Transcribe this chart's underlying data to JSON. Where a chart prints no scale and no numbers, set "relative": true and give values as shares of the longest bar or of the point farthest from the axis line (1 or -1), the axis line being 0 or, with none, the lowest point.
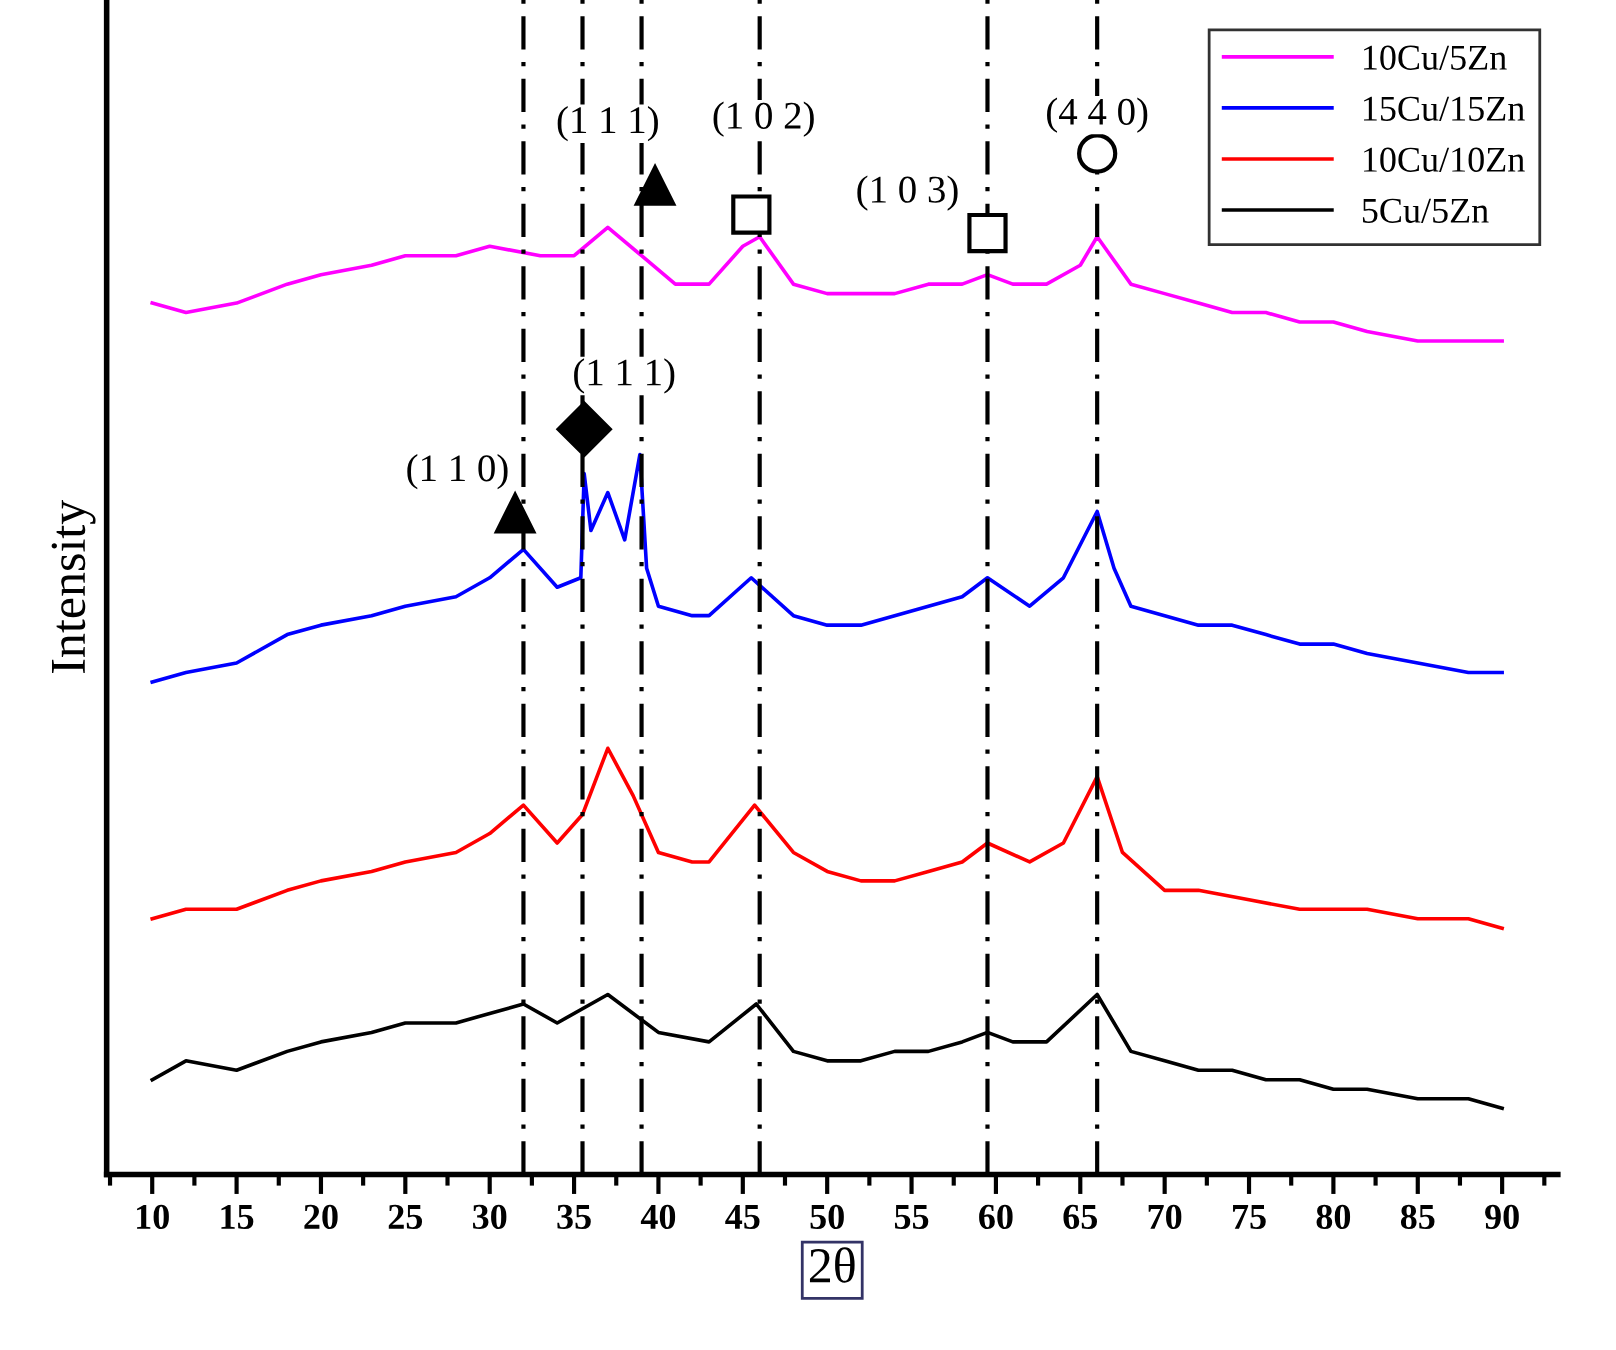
{
  "chart_data": {
    "type": "line",
    "xlabel": "2θ",
    "ylabel": "Intensity",
    "relative": true,
    "xlim": [
      7.3,
      93.3
    ],
    "xticks": [
      {
        "value": 7.5,
        "label": null
      },
      10,
      {
        "value": 12.5,
        "label": null
      },
      15,
      {
        "value": 17.5,
        "label": null
      },
      20,
      {
        "value": 22.5,
        "label": null
      },
      25,
      {
        "value": 27.5,
        "label": null
      },
      30,
      {
        "value": 32.5,
        "label": null
      },
      35,
      {
        "value": 37.5,
        "label": null
      },
      40,
      {
        "value": 42.5,
        "label": null
      },
      45,
      {
        "value": 47.5,
        "label": null
      },
      50,
      {
        "value": 52.5,
        "label": null
      },
      55,
      {
        "value": 57.5,
        "label": null
      },
      60,
      {
        "value": 62.5,
        "label": null
      },
      65,
      {
        "value": 67.5,
        "label": null
      },
      70,
      {
        "value": 72.5,
        "label": null
      },
      75,
      {
        "value": 77.5,
        "label": null
      },
      80,
      {
        "value": 82.5,
        "label": null
      },
      85,
      {
        "value": 87.5,
        "label": null
      },
      90,
      {
        "value": 92.5,
        "label": null
      }
    ],
    "legend": "top right",
    "grid": false,
    "series": [
      {
        "name": "10Cu/5Zn",
        "color": "#ff00ff",
        "x": [
          10,
          12,
          15,
          18,
          20,
          23,
          25,
          28,
          30,
          33,
          35,
          37,
          39,
          41,
          43,
          45,
          46,
          48,
          50,
          52,
          54,
          56,
          58,
          59.5,
          61,
          63,
          65,
          66,
          68,
          70,
          72,
          74,
          76,
          78,
          80,
          82,
          85,
          88,
          90
        ],
        "values": [
          0.92,
          0.91,
          0.92,
          0.94,
          0.95,
          0.96,
          0.97,
          0.97,
          0.98,
          0.97,
          0.97,
          1.0,
          0.97,
          0.94,
          0.94,
          0.98,
          0.99,
          0.94,
          0.93,
          0.93,
          0.93,
          0.94,
          0.94,
          0.95,
          0.94,
          0.94,
          0.96,
          0.99,
          0.94,
          0.93,
          0.92,
          0.91,
          0.91,
          0.9,
          0.9,
          0.89,
          0.88,
          0.88,
          0.88
        ]
      },
      {
        "name": "15Cu/15Zn",
        "color": "#0000ff",
        "x": [
          10,
          12,
          15,
          18,
          20,
          23,
          25,
          28,
          30,
          32,
          34,
          35.4,
          35.6,
          36,
          37,
          38,
          38.9,
          39.3,
          40,
          42,
          43,
          45.5,
          48,
          50,
          52,
          54,
          56,
          58,
          59.5,
          62,
          64,
          66,
          67,
          68,
          70,
          72,
          74,
          76,
          78,
          80,
          82,
          85,
          88,
          90
        ],
        "values": [
          0.52,
          0.53,
          0.54,
          0.57,
          0.58,
          0.59,
          0.6,
          0.61,
          0.63,
          0.66,
          0.62,
          0.63,
          0.74,
          0.68,
          0.72,
          0.67,
          0.76,
          0.64,
          0.6,
          0.59,
          0.59,
          0.63,
          0.59,
          0.58,
          0.58,
          0.59,
          0.6,
          0.61,
          0.63,
          0.6,
          0.63,
          0.7,
          0.64,
          0.6,
          0.59,
          0.58,
          0.58,
          0.57,
          0.56,
          0.56,
          0.55,
          0.54,
          0.53,
          0.53
        ]
      },
      {
        "name": "10Cu/10Zn",
        "color": "#ff0000",
        "x": [
          10,
          12,
          15,
          18,
          20,
          23,
          25,
          28,
          30,
          32,
          34,
          35.5,
          37,
          38.5,
          40,
          42,
          43,
          45.7,
          48,
          50,
          52,
          54,
          56,
          58,
          59.5,
          62,
          64,
          66,
          67.5,
          70,
          72,
          75,
          78,
          80,
          82,
          85,
          88,
          90
        ],
        "values": [
          0.27,
          0.28,
          0.28,
          0.3,
          0.31,
          0.32,
          0.33,
          0.34,
          0.36,
          0.39,
          0.35,
          0.38,
          0.45,
          0.4,
          0.34,
          0.33,
          0.33,
          0.39,
          0.34,
          0.32,
          0.31,
          0.31,
          0.32,
          0.33,
          0.35,
          0.33,
          0.35,
          0.42,
          0.34,
          0.3,
          0.3,
          0.29,
          0.28,
          0.28,
          0.28,
          0.27,
          0.27,
          0.26
        ]
      },
      {
        "name": "5Cu/5Zn",
        "color": "#000000",
        "x": [
          10,
          12,
          15,
          18,
          20,
          23,
          25,
          28,
          30,
          32,
          34,
          37,
          40,
          43,
          45.8,
          48,
          50,
          52,
          54,
          56,
          58,
          59.5,
          61,
          63,
          66,
          68,
          70,
          72,
          74,
          76,
          78,
          80,
          82,
          85,
          88,
          90
        ],
        "values": [
          0.1,
          0.12,
          0.11,
          0.13,
          0.14,
          0.15,
          0.16,
          0.16,
          0.17,
          0.18,
          0.16,
          0.19,
          0.15,
          0.14,
          0.18,
          0.13,
          0.12,
          0.12,
          0.13,
          0.13,
          0.14,
          0.15,
          0.14,
          0.14,
          0.19,
          0.13,
          0.12,
          0.11,
          0.11,
          0.1,
          0.1,
          0.09,
          0.09,
          0.08,
          0.08,
          0.07
        ]
      }
    ],
    "ref_lines": [
      {
        "axis": "x",
        "value": 32,
        "color": "#000000"
      },
      {
        "axis": "x",
        "value": 35.5,
        "color": "#000000"
      },
      {
        "axis": "x",
        "value": 39,
        "color": "#000000"
      },
      {
        "axis": "x",
        "value": 46,
        "color": "#000000"
      },
      {
        "axis": "x",
        "value": 59.5,
        "color": "#000000"
      },
      {
        "axis": "x",
        "value": 66,
        "color": "#000000"
      }
    ],
    "annotations": [
      {
        "text": "(1 1 1)",
        "x": 37,
        "y": 1.0
      },
      {
        "text": "(1 0 2)",
        "x": 46,
        "y": 0.99
      },
      {
        "text": "(1 0 3)",
        "x": 59.5,
        "y": 0.95
      },
      {
        "text": "(4 4 0)",
        "x": 66,
        "y": 0.99
      },
      {
        "text": "(1 1 1)",
        "x": 35.6,
        "y": 0.74
      },
      {
        "text": "(1 1 0)",
        "x": 32,
        "y": 0.66
      }
    ]
  }
}
